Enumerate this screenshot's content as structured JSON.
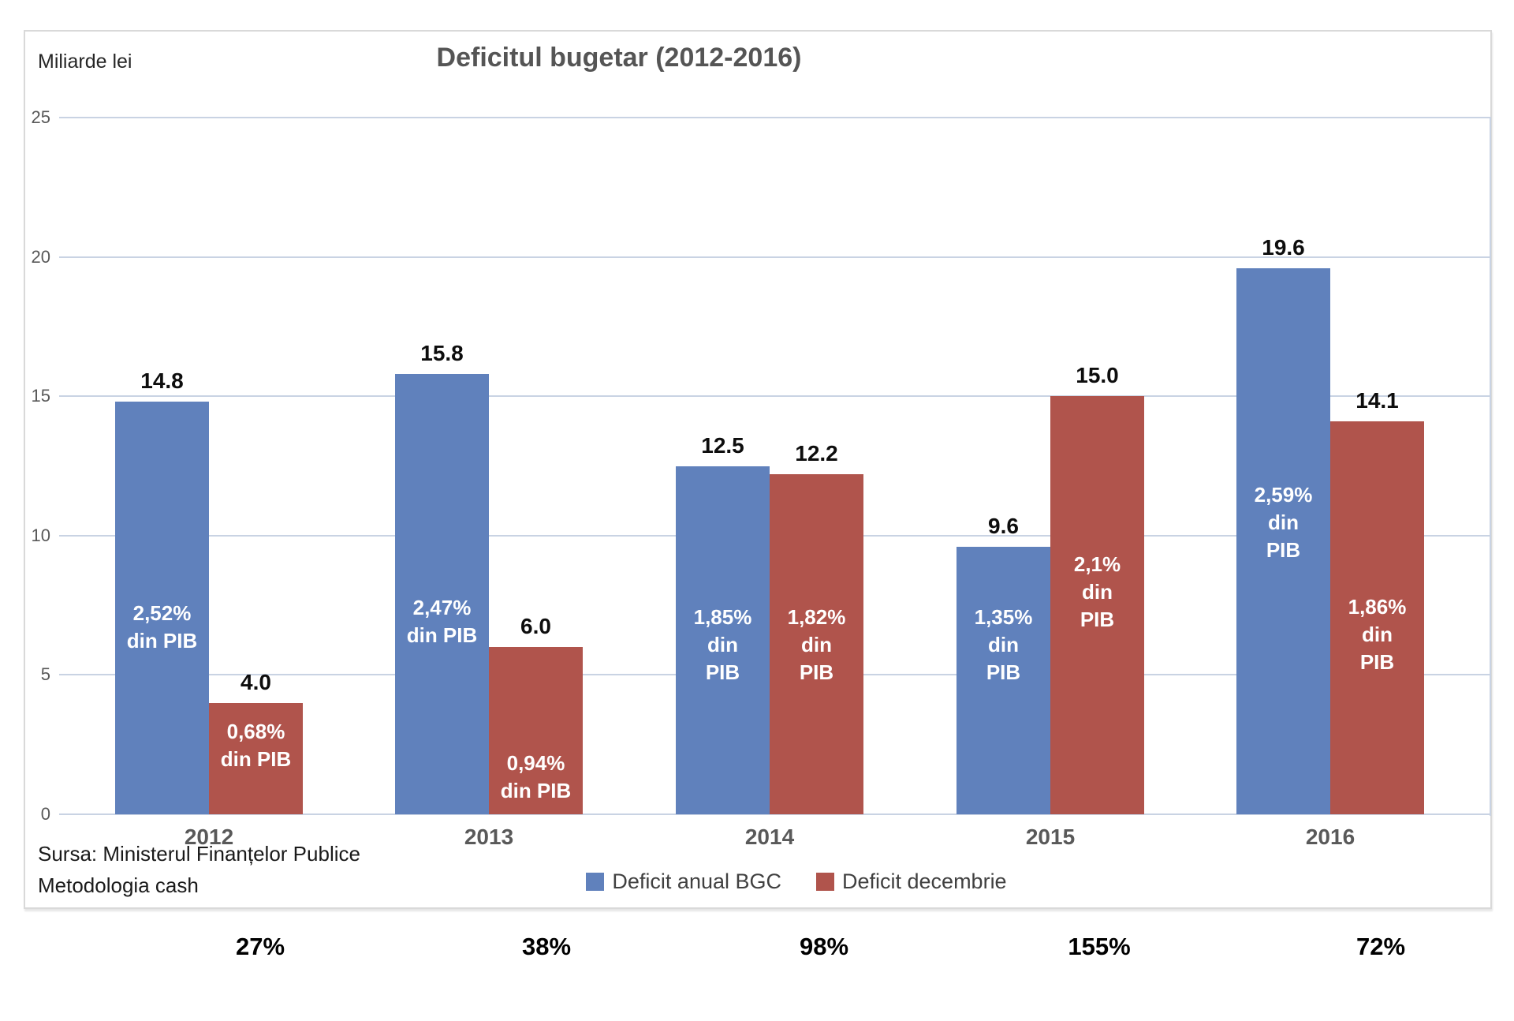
{
  "chart_data": {
    "type": "bar",
    "title": "Deficitul bugetar (2012-2016)",
    "unit_label": "Miliarde lei",
    "xlabel": "",
    "ylabel": "Miliarde lei",
    "categories": [
      "2012",
      "2013",
      "2014",
      "2015",
      "2016"
    ],
    "series": [
      {
        "name": "Deficit anual BGC",
        "color": "#6081bc",
        "values": [
          14.8,
          15.8,
          12.5,
          9.6,
          19.6
        ],
        "pib_labels": [
          [
            "2,52%",
            "din PIB"
          ],
          [
            "2,47%",
            "din PIB"
          ],
          [
            "1,85%",
            "din",
            "PIB"
          ],
          [
            "1,35%",
            "din",
            "PIB"
          ],
          [
            "2,59%",
            "din",
            "PIB"
          ]
        ]
      },
      {
        "name": "Deficit decembrie",
        "color": "#b0544c",
        "values": [
          4.0,
          6.0,
          12.2,
          15.0,
          14.1
        ],
        "pib_labels": [
          [
            "0,68%",
            "din PIB"
          ],
          [
            "0,94%",
            "din PIB"
          ],
          [
            "1,82%",
            "din",
            "PIB"
          ],
          [
            "2,1%",
            "din",
            "PIB"
          ],
          [
            "1,86%",
            "din",
            "PIB"
          ]
        ]
      }
    ],
    "value_labels": [
      [
        "14.8",
        "15.8",
        "12.5",
        "9.6",
        "19.6"
      ],
      [
        "4.0",
        "6.0",
        "12.2",
        "15.0",
        "14.1"
      ]
    ],
    "percent_row": [
      "27%",
      "38%",
      "98%",
      "155%",
      "72%"
    ],
    "yticks": [
      0,
      5,
      10,
      15,
      20,
      25
    ],
    "ylim": [
      0,
      25
    ],
    "grid": true,
    "legend_position": "bottom",
    "source_lines": [
      "Sursa: Ministerul Finanțelor Publice",
      "Metodologia cash"
    ]
  }
}
